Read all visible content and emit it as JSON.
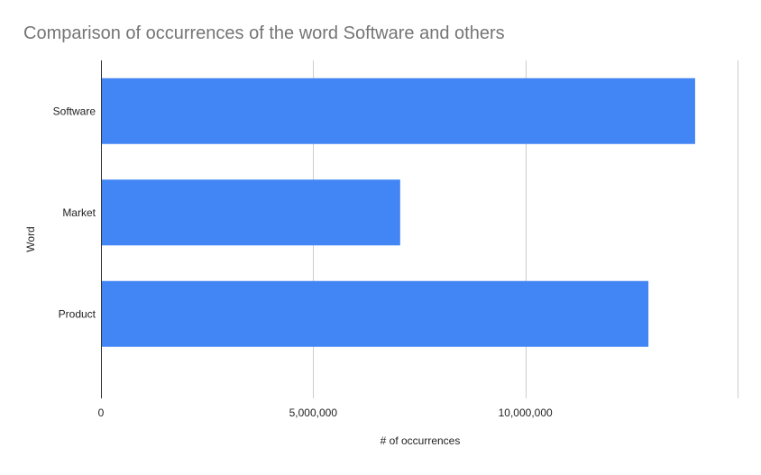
{
  "chart_data": {
    "type": "bar",
    "orientation": "horizontal",
    "title": "Comparison of occurrences of the word Software and others",
    "xlabel": "# of occurrences",
    "ylabel": "Word",
    "categories": [
      "Software",
      "Market",
      "Product"
    ],
    "values": [
      14000000,
      7050000,
      12900000
    ],
    "xlim": [
      0,
      15000000
    ],
    "x_ticks": [
      0,
      5000000,
      10000000
    ],
    "x_tick_labels": [
      "0",
      "5,000,000",
      "10,000,000"
    ],
    "grid": "vertical",
    "legend": "none",
    "bar_color": "#4285f4"
  }
}
